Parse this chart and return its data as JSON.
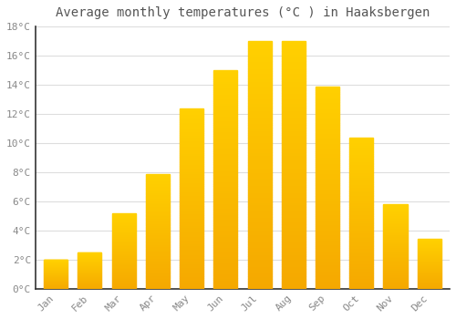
{
  "title": "Average monthly temperatures (°C ) in Haaksbergen",
  "months": [
    "Jan",
    "Feb",
    "Mar",
    "Apr",
    "May",
    "Jun",
    "Jul",
    "Aug",
    "Sep",
    "Oct",
    "Nov",
    "Dec"
  ],
  "values": [
    2.0,
    2.5,
    5.2,
    7.9,
    12.4,
    15.0,
    17.0,
    17.0,
    13.9,
    10.4,
    5.8,
    3.4
  ],
  "bar_color_bottom": "#F5A800",
  "bar_color_top": "#FFD000",
  "background_color": "#FFFFFF",
  "grid_color": "#DDDDDD",
  "ylim": [
    0,
    18
  ],
  "yticks": [
    0,
    2,
    4,
    6,
    8,
    10,
    12,
    14,
    16,
    18
  ],
  "ytick_labels": [
    "0°C",
    "2°C",
    "4°C",
    "6°C",
    "8°C",
    "10°C",
    "12°C",
    "14°C",
    "16°C",
    "18°C"
  ],
  "title_fontsize": 10,
  "tick_fontsize": 8,
  "bar_width": 0.7
}
